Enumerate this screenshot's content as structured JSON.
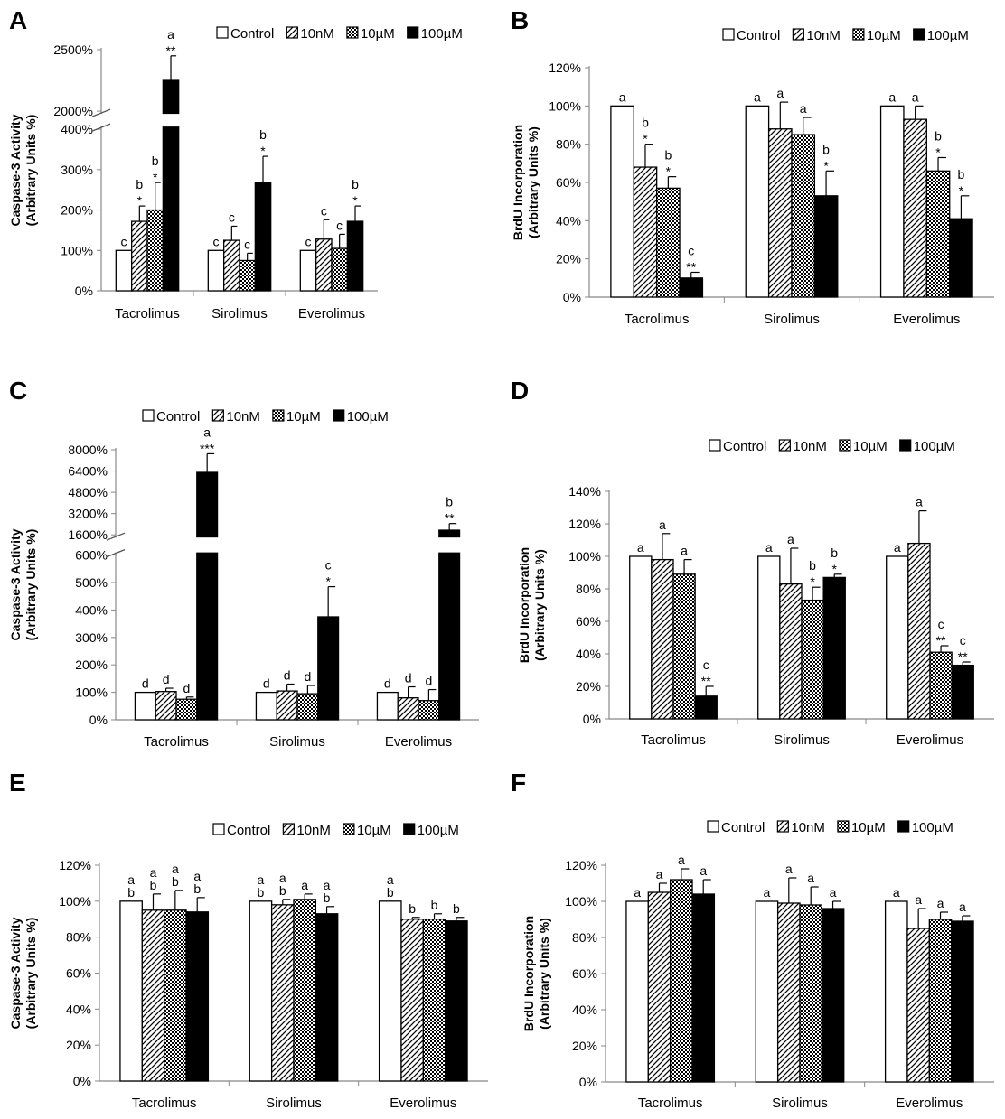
{
  "legend_patterns": {
    "Control": "white",
    "10nM": "diagonal",
    "10µM": "checker",
    "100µM": "black"
  },
  "chart_data": [
    {
      "panel": "A",
      "type": "bar",
      "categories": [
        "Tacrolimus",
        "Sirolimus",
        "Everolimus"
      ],
      "series": [
        {
          "name": "Control",
          "values": [
            100,
            100,
            100
          ],
          "errors": [
            0,
            0,
            0
          ],
          "labels": [
            [
              "c"
            ],
            [
              "c"
            ],
            [
              "c"
            ]
          ]
        },
        {
          "name": "10nM",
          "values": [
            172,
            125,
            128
          ],
          "errors": [
            38,
            35,
            48
          ],
          "labels": [
            [
              "b",
              "*"
            ],
            [
              "c"
            ],
            [
              "c"
            ]
          ]
        },
        {
          "name": "10µM",
          "values": [
            200,
            75,
            105
          ],
          "errors": [
            68,
            18,
            35
          ],
          "labels": [
            [
              "b",
              "*"
            ],
            [
              "c"
            ],
            [
              "c"
            ]
          ]
        },
        {
          "name": "100µM",
          "values": [
            2250,
            268,
            172
          ],
          "errors": [
            200,
            65,
            38
          ],
          "labels": [
            [
              "a",
              "**"
            ],
            [
              "b",
              "*"
            ],
            [
              "b",
              "*"
            ]
          ]
        }
      ],
      "ylabel": [
        "Caspase-3 Activity",
        "(Arbitrary Units %)"
      ],
      "ylim": [
        0,
        2500
      ],
      "axis_break": {
        "lower": [
          0,
          400
        ],
        "upper": [
          2000,
          2500
        ]
      },
      "yticks": [
        0,
        100,
        200,
        300,
        400,
        2000,
        2500
      ],
      "ytick_labels": [
        "0%",
        "100%",
        "200%",
        "300%",
        "400%",
        "2000%",
        "2500%"
      ],
      "legend": "top"
    },
    {
      "panel": "B",
      "type": "bar",
      "categories": [
        "Tacrolimus",
        "Sirolimus",
        "Everolimus"
      ],
      "series": [
        {
          "name": "Control",
          "values": [
            100,
            100,
            100
          ],
          "errors": [
            0,
            0,
            0
          ],
          "labels": [
            [
              "a"
            ],
            [
              "a"
            ],
            [
              "a"
            ]
          ]
        },
        {
          "name": "10nM",
          "values": [
            68,
            88,
            93
          ],
          "errors": [
            12,
            14,
            7
          ],
          "labels": [
            [
              "b",
              "*"
            ],
            [
              "a"
            ],
            [
              "a"
            ]
          ]
        },
        {
          "name": "10µM",
          "values": [
            57,
            85,
            66
          ],
          "errors": [
            6,
            9,
            7
          ],
          "labels": [
            [
              "b",
              "*"
            ],
            [
              "a"
            ],
            [
              "b",
              "*"
            ]
          ]
        },
        {
          "name": "100µM",
          "values": [
            10,
            53,
            41
          ],
          "errors": [
            3,
            13,
            12
          ],
          "labels": [
            [
              "c",
              "**"
            ],
            [
              "b",
              "*"
            ],
            [
              "b",
              "*"
            ]
          ]
        }
      ],
      "ylabel": [
        "BrdU Incorporation",
        "(Arbitrary Units %)"
      ],
      "ylim": [
        0,
        120
      ],
      "yticks": [
        0,
        20,
        40,
        60,
        80,
        100,
        120
      ],
      "ytick_labels": [
        "0%",
        "20%",
        "40%",
        "60%",
        "80%",
        "100%",
        "120%"
      ],
      "legend": "top"
    },
    {
      "panel": "C",
      "type": "bar",
      "categories": [
        "Tacrolimus",
        "Sirolimus",
        "Everolimus"
      ],
      "series": [
        {
          "name": "Control",
          "values": [
            100,
            100,
            100
          ],
          "errors": [
            0,
            0,
            0
          ],
          "labels": [
            [
              "d"
            ],
            [
              "d"
            ],
            [
              "d"
            ]
          ]
        },
        {
          "name": "10nM",
          "values": [
            103,
            105,
            80
          ],
          "errors": [
            12,
            25,
            40
          ],
          "labels": [
            [
              "d"
            ],
            [
              "d"
            ],
            [
              "d"
            ]
          ]
        },
        {
          "name": "10µM",
          "values": [
            75,
            95,
            70
          ],
          "errors": [
            8,
            30,
            40
          ],
          "labels": [
            [
              "d"
            ],
            [
              "d"
            ],
            [
              "d"
            ]
          ]
        },
        {
          "name": "100µM",
          "values": [
            6300,
            375,
            1950
          ],
          "errors": [
            1400,
            110,
            500
          ],
          "labels": [
            [
              "a",
              "***"
            ],
            [
              "c",
              "*"
            ],
            [
              "b",
              "**"
            ]
          ]
        }
      ],
      "ylabel": [
        "Caspase-3 Activity",
        "(Arbitrary Units %)"
      ],
      "ylim": [
        0,
        8000
      ],
      "axis_break": {
        "lower": [
          0,
          600
        ],
        "upper": [
          1600,
          8000
        ]
      },
      "yticks": [
        0,
        100,
        200,
        300,
        400,
        500,
        600,
        1600,
        3200,
        4800,
        6400,
        8000
      ],
      "ytick_labels": [
        "0%",
        "100%",
        "200%",
        "300%",
        "400%",
        "500%",
        "600%",
        "1600%",
        "3200%",
        "4800%",
        "6400%",
        "8000%"
      ],
      "legend": "top"
    },
    {
      "panel": "D",
      "type": "bar",
      "categories": [
        "Tacrolimus",
        "Sirolimus",
        "Everolimus"
      ],
      "series": [
        {
          "name": "Control",
          "values": [
            100,
            100,
            100
          ],
          "errors": [
            0,
            0,
            0
          ],
          "labels": [
            [
              "a"
            ],
            [
              "a"
            ],
            [
              "a"
            ]
          ]
        },
        {
          "name": "10nM",
          "values": [
            98,
            83,
            108
          ],
          "errors": [
            16,
            22,
            20
          ],
          "labels": [
            [
              "a"
            ],
            [
              "a"
            ],
            [
              "a"
            ]
          ]
        },
        {
          "name": "10µM",
          "values": [
            89,
            73,
            41
          ],
          "errors": [
            9,
            8,
            4
          ],
          "labels": [
            [
              "a"
            ],
            [
              "b",
              "*"
            ],
            [
              "c",
              "**"
            ]
          ]
        },
        {
          "name": "100µM",
          "values": [
            14,
            87,
            33
          ],
          "errors": [
            6,
            2,
            2
          ],
          "labels": [
            [
              "c",
              "**"
            ],
            [
              "b",
              "*"
            ],
            [
              "c",
              "**"
            ]
          ]
        }
      ],
      "ylabel": [
        "BrdU Incorporation",
        "(Arbitrary Units %)"
      ],
      "ylim": [
        0,
        140
      ],
      "yticks": [
        0,
        20,
        40,
        60,
        80,
        100,
        120,
        140
      ],
      "ytick_labels": [
        "0%",
        "20%",
        "40%",
        "60%",
        "80%",
        "100%",
        "120%",
        "140%"
      ],
      "legend": "top"
    },
    {
      "panel": "E",
      "type": "bar",
      "categories": [
        "Tacrolimus",
        "Sirolimus",
        "Everolimus"
      ],
      "series": [
        {
          "name": "Control",
          "values": [
            100,
            100,
            100
          ],
          "errors": [
            0,
            0,
            0
          ],
          "labels": [
            [
              "a",
              "b"
            ],
            [
              "a",
              "b"
            ],
            [
              "a",
              "b"
            ]
          ]
        },
        {
          "name": "10nM",
          "values": [
            95,
            98,
            90
          ],
          "errors": [
            9,
            3,
            1
          ],
          "labels": [
            [
              "a",
              "b"
            ],
            [
              "a",
              "b"
            ],
            [
              "b"
            ]
          ]
        },
        {
          "name": "10µM",
          "values": [
            95,
            101,
            90
          ],
          "errors": [
            11,
            3,
            3
          ],
          "labels": [
            [
              "a",
              "b"
            ],
            [
              "a"
            ],
            [
              "b"
            ]
          ]
        },
        {
          "name": "100µM",
          "values": [
            94,
            93,
            89
          ],
          "errors": [
            8,
            4,
            2
          ],
          "labels": [
            [
              "a",
              "b"
            ],
            [
              "a",
              "b"
            ],
            [
              "b"
            ]
          ]
        }
      ],
      "ylabel": [
        "Caspase-3 Activity",
        "(Arbitrary Units %)"
      ],
      "ylim": [
        0,
        120
      ],
      "yticks": [
        0,
        20,
        40,
        60,
        80,
        100,
        120
      ],
      "ytick_labels": [
        "0%",
        "20%",
        "40%",
        "60%",
        "80%",
        "100%",
        "120%"
      ],
      "legend": "top"
    },
    {
      "panel": "F",
      "type": "bar",
      "categories": [
        "Tacrolimus",
        "Sirolimus",
        "Everolimus"
      ],
      "series": [
        {
          "name": "Control",
          "values": [
            100,
            100,
            100
          ],
          "errors": [
            0,
            0,
            0
          ],
          "labels": [
            [
              "a"
            ],
            [
              "a"
            ],
            [
              "a"
            ]
          ]
        },
        {
          "name": "10nM",
          "values": [
            105,
            99,
            85
          ],
          "errors": [
            5,
            14,
            11
          ],
          "labels": [
            [
              "a"
            ],
            [
              "a"
            ],
            [
              "a"
            ]
          ]
        },
        {
          "name": "10µM",
          "values": [
            112,
            98,
            90
          ],
          "errors": [
            6,
            10,
            4
          ],
          "labels": [
            [
              "a"
            ],
            [
              "a"
            ],
            [
              "a"
            ]
          ]
        },
        {
          "name": "100µM",
          "values": [
            104,
            96,
            89
          ],
          "errors": [
            8,
            4,
            3
          ],
          "labels": [
            [
              "a"
            ],
            [
              "a"
            ],
            [
              "a"
            ]
          ]
        }
      ],
      "ylabel": [
        "BrdU Incorporation",
        "(Arbitrary Units %)"
      ],
      "ylim": [
        0,
        120
      ],
      "yticks": [
        0,
        20,
        40,
        60,
        80,
        100,
        120
      ],
      "ytick_labels": [
        "0%",
        "20%",
        "40%",
        "60%",
        "80%",
        "100%",
        "120%"
      ],
      "legend": "top"
    }
  ]
}
